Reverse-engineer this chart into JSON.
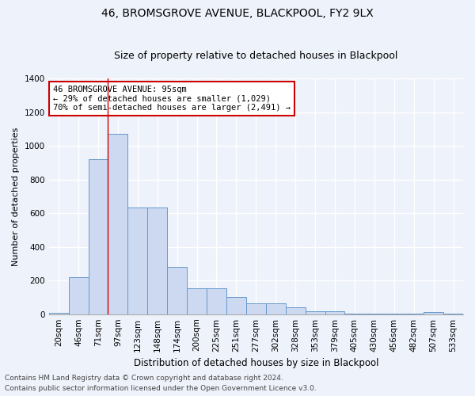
{
  "title": "46, BROMSGROVE AVENUE, BLACKPOOL, FY2 9LX",
  "subtitle": "Size of property relative to detached houses in Blackpool",
  "xlabel": "Distribution of detached houses by size in Blackpool",
  "ylabel": "Number of detached properties",
  "categories": [
    "20sqm",
    "46sqm",
    "71sqm",
    "97sqm",
    "123sqm",
    "148sqm",
    "174sqm",
    "200sqm",
    "225sqm",
    "251sqm",
    "277sqm",
    "302sqm",
    "328sqm",
    "353sqm",
    "379sqm",
    "405sqm",
    "430sqm",
    "456sqm",
    "482sqm",
    "507sqm",
    "533sqm"
  ],
  "values": [
    10,
    220,
    920,
    1070,
    635,
    635,
    280,
    155,
    155,
    100,
    65,
    65,
    40,
    15,
    15,
    5,
    5,
    5,
    5,
    12,
    5
  ],
  "bar_color": "#ccd9f0",
  "bar_edge_color": "#6699cc",
  "vline_x_index": 3,
  "vline_color": "#cc0000",
  "annotation_text": "46 BROMSGROVE AVENUE: 95sqm\n← 29% of detached houses are smaller (1,029)\n70% of semi-detached houses are larger (2,491) →",
  "annotation_box_facecolor": "white",
  "annotation_box_edgecolor": "#cc0000",
  "ylim": [
    0,
    1400
  ],
  "yticks": [
    0,
    200,
    400,
    600,
    800,
    1000,
    1200,
    1400
  ],
  "background_color": "#eef2fb",
  "grid_color": "#ffffff",
  "footer_line1": "Contains HM Land Registry data © Crown copyright and database right 2024.",
  "footer_line2": "Contains public sector information licensed under the Open Government Licence v3.0.",
  "title_fontsize": 10,
  "subtitle_fontsize": 9,
  "xlabel_fontsize": 8.5,
  "ylabel_fontsize": 8,
  "tick_fontsize": 7.5,
  "footer_fontsize": 6.5,
  "annotation_fontsize": 7.5
}
